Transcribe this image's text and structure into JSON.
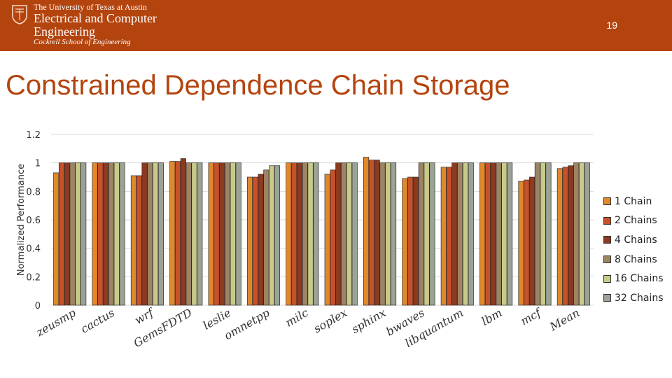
{
  "header": {
    "university": "The University of Texas at Austin",
    "department_line1": "Electrical and Computer",
    "department_line2": "Engineering",
    "school": "Cockrell School of Engineering",
    "slide_number": "19"
  },
  "slide": {
    "title": "Constrained Dependence Chain Storage"
  },
  "colors": {
    "banner": "#b4440e",
    "title": "#b4440e",
    "series": [
      "#e0882c",
      "#c7522a",
      "#8c3a20",
      "#9c8465",
      "#c9ca8a",
      "#9aa395"
    ]
  },
  "chart_data": {
    "type": "bar",
    "title": "",
    "xlabel": "",
    "ylabel": "Normalized Performance",
    "ylim": [
      0,
      1.2
    ],
    "yticks": [
      0,
      0.2,
      0.4,
      0.6,
      0.8,
      1,
      1.2
    ],
    "ytick_labels": [
      "0",
      "0.2",
      "0.4",
      "0.6",
      "0.8",
      "1",
      "1.2"
    ],
    "grid": true,
    "legend_position": "right",
    "categories": [
      "zeusmp",
      "cactus",
      "wrf",
      "GemsFDTD",
      "leslie",
      "omnetpp",
      "milc",
      "soplex",
      "sphinx",
      "bwaves",
      "libquantum",
      "lbm",
      "mcf",
      "Mean"
    ],
    "series": [
      {
        "name": "1 Chain",
        "values": [
          0.93,
          1.0,
          0.91,
          1.01,
          1.0,
          0.9,
          1.0,
          0.92,
          1.04,
          0.89,
          0.97,
          1.0,
          0.87,
          0.96
        ]
      },
      {
        "name": "2 Chains",
        "values": [
          1.0,
          1.0,
          0.91,
          1.01,
          1.0,
          0.9,
          1.0,
          0.95,
          1.02,
          0.9,
          0.97,
          1.0,
          0.88,
          0.97
        ]
      },
      {
        "name": "4 Chains",
        "values": [
          1.0,
          1.0,
          1.0,
          1.03,
          1.0,
          0.92,
          1.0,
          1.0,
          1.02,
          0.9,
          1.0,
          1.0,
          0.9,
          0.98
        ]
      },
      {
        "name": "8 Chains",
        "values": [
          1.0,
          1.0,
          1.0,
          1.0,
          1.0,
          0.95,
          1.0,
          1.0,
          1.0,
          1.0,
          1.0,
          1.0,
          1.0,
          1.0
        ]
      },
      {
        "name": "16 Chains",
        "values": [
          1.0,
          1.0,
          1.0,
          1.0,
          1.0,
          0.98,
          1.0,
          1.0,
          1.0,
          1.0,
          1.0,
          1.0,
          1.0,
          1.0
        ]
      },
      {
        "name": "32 Chains",
        "values": [
          1.0,
          1.0,
          1.0,
          1.0,
          1.0,
          0.98,
          1.0,
          1.0,
          1.0,
          1.0,
          1.0,
          1.0,
          1.0,
          1.0
        ]
      }
    ]
  }
}
